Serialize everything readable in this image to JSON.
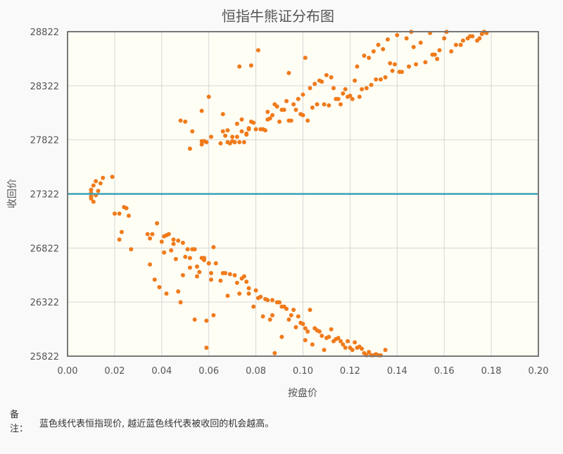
{
  "chart_data": {
    "type": "scatter",
    "title": "恒指牛熊证分布图",
    "xlabel": "按盘价",
    "ylabel": "收回价",
    "xlim": [
      0,
      0.2
    ],
    "ylim": [
      25822,
      28822
    ],
    "x_ticks": [
      "0.00",
      "0.02",
      "0.04",
      "0.06",
      "0.08",
      "0.10",
      "0.12",
      "0.14",
      "0.16",
      "0.18",
      "0.20"
    ],
    "y_ticks": [
      "25822",
      "26322",
      "26822",
      "27322",
      "27822",
      "28322",
      "28822"
    ],
    "grid": true,
    "reference_line": {
      "y": 27322,
      "color": "#3aa1b8"
    },
    "series_color": "#f07a1a",
    "series": [
      {
        "points": [
          [
            0.01,
            27300
          ],
          [
            0.01,
            27330
          ],
          [
            0.01,
            27360
          ],
          [
            0.01,
            27280
          ],
          [
            0.011,
            27250
          ],
          [
            0.011,
            27400
          ],
          [
            0.012,
            27310
          ],
          [
            0.012,
            27440
          ],
          [
            0.013,
            27350
          ],
          [
            0.014,
            27420
          ],
          [
            0.015,
            27470
          ],
          [
            0.019,
            27480
          ],
          [
            0.02,
            27140
          ],
          [
            0.022,
            27140
          ],
          [
            0.022,
            26900
          ],
          [
            0.023,
            26970
          ],
          [
            0.024,
            27200
          ],
          [
            0.025,
            27190
          ],
          [
            0.026,
            27120
          ],
          [
            0.027,
            26810
          ],
          [
            0.034,
            26950
          ],
          [
            0.035,
            26910
          ],
          [
            0.035,
            26670
          ],
          [
            0.036,
            26950
          ],
          [
            0.037,
            26530
          ],
          [
            0.038,
            27050
          ],
          [
            0.039,
            26460
          ],
          [
            0.04,
            26880
          ],
          [
            0.041,
            26780
          ],
          [
            0.041,
            26930
          ],
          [
            0.042,
            26940
          ],
          [
            0.042,
            26400
          ],
          [
            0.043,
            26950
          ],
          [
            0.044,
            26800
          ],
          [
            0.045,
            26900
          ],
          [
            0.045,
            26860
          ],
          [
            0.046,
            26720
          ],
          [
            0.047,
            26890
          ],
          [
            0.047,
            26420
          ],
          [
            0.048,
            26320
          ],
          [
            0.049,
            26870
          ],
          [
            0.049,
            26570
          ],
          [
            0.05,
            26740
          ],
          [
            0.051,
            26810
          ],
          [
            0.052,
            26640
          ],
          [
            0.052,
            26730
          ],
          [
            0.053,
            26810
          ],
          [
            0.054,
            26810
          ],
          [
            0.055,
            26650
          ],
          [
            0.055,
            26560
          ],
          [
            0.056,
            26600
          ],
          [
            0.057,
            26730
          ],
          [
            0.058,
            26710
          ],
          [
            0.058,
            26730
          ],
          [
            0.059,
            26150
          ],
          [
            0.06,
            26680
          ],
          [
            0.06,
            26680
          ],
          [
            0.061,
            26590
          ],
          [
            0.061,
            26530
          ],
          [
            0.062,
            26830
          ],
          [
            0.062,
            26200
          ],
          [
            0.063,
            26680
          ],
          [
            0.054,
            26160
          ],
          [
            0.059,
            25900
          ],
          [
            0.065,
            26520
          ],
          [
            0.066,
            26590
          ],
          [
            0.067,
            26590
          ],
          [
            0.068,
            26380
          ],
          [
            0.069,
            26580
          ],
          [
            0.071,
            26570
          ],
          [
            0.072,
            26500
          ],
          [
            0.073,
            26400
          ],
          [
            0.074,
            26540
          ],
          [
            0.075,
            26560
          ],
          [
            0.076,
            26510
          ],
          [
            0.077,
            26450
          ],
          [
            0.077,
            26400
          ],
          [
            0.079,
            26280
          ],
          [
            0.08,
            26430
          ],
          [
            0.081,
            26360
          ],
          [
            0.082,
            26370
          ],
          [
            0.083,
            26190
          ],
          [
            0.084,
            26350
          ],
          [
            0.085,
            26340
          ],
          [
            0.086,
            26160
          ],
          [
            0.087,
            26340
          ],
          [
            0.087,
            26200
          ],
          [
            0.088,
            25850
          ],
          [
            0.089,
            26320
          ],
          [
            0.09,
            26320
          ],
          [
            0.091,
            26280
          ],
          [
            0.091,
            26000
          ],
          [
            0.092,
            26280
          ],
          [
            0.093,
            26260
          ],
          [
            0.094,
            26160
          ],
          [
            0.095,
            26200
          ],
          [
            0.096,
            26250
          ],
          [
            0.097,
            26090
          ],
          [
            0.098,
            26190
          ],
          [
            0.099,
            26130
          ],
          [
            0.1,
            26120
          ],
          [
            0.101,
            26080
          ],
          [
            0.101,
            25970
          ],
          [
            0.102,
            26050
          ],
          [
            0.103,
            26250
          ],
          [
            0.104,
            25930
          ],
          [
            0.105,
            26080
          ],
          [
            0.106,
            26060
          ],
          [
            0.107,
            26050
          ],
          [
            0.108,
            26010
          ],
          [
            0.109,
            25880
          ],
          [
            0.11,
            25990
          ],
          [
            0.111,
            26000
          ],
          [
            0.112,
            26070
          ],
          [
            0.113,
            25960
          ],
          [
            0.114,
            25980
          ],
          [
            0.115,
            25990
          ],
          [
            0.116,
            25960
          ],
          [
            0.117,
            25930
          ],
          [
            0.118,
            25900
          ],
          [
            0.119,
            25960
          ],
          [
            0.12,
            25900
          ],
          [
            0.121,
            25880
          ],
          [
            0.122,
            25950
          ],
          [
            0.123,
            25900
          ],
          [
            0.124,
            25910
          ],
          [
            0.125,
            25890
          ],
          [
            0.126,
            25850
          ],
          [
            0.127,
            25830
          ],
          [
            0.128,
            25860
          ],
          [
            0.129,
            25830
          ],
          [
            0.13,
            25830
          ],
          [
            0.131,
            25840
          ],
          [
            0.132,
            25830
          ],
          [
            0.133,
            25830
          ],
          [
            0.135,
            25880
          ],
          [
            0.048,
            28000
          ],
          [
            0.05,
            27990
          ],
          [
            0.052,
            27740
          ],
          [
            0.053,
            27900
          ],
          [
            0.057,
            27780
          ],
          [
            0.057,
            27810
          ],
          [
            0.057,
            28090
          ],
          [
            0.058,
            27810
          ],
          [
            0.059,
            27800
          ],
          [
            0.06,
            28220
          ],
          [
            0.061,
            27850
          ],
          [
            0.065,
            27790
          ],
          [
            0.066,
            27900
          ],
          [
            0.066,
            28060
          ],
          [
            0.067,
            27860
          ],
          [
            0.068,
            27910
          ],
          [
            0.068,
            27800
          ],
          [
            0.069,
            27790
          ],
          [
            0.07,
            27850
          ],
          [
            0.07,
            27810
          ],
          [
            0.071,
            27800
          ],
          [
            0.072,
            27970
          ],
          [
            0.072,
            27850
          ],
          [
            0.073,
            27800
          ],
          [
            0.073,
            28500
          ],
          [
            0.074,
            28010
          ],
          [
            0.074,
            27900
          ],
          [
            0.075,
            27800
          ],
          [
            0.076,
            27880
          ],
          [
            0.076,
            27870
          ],
          [
            0.077,
            27920
          ],
          [
            0.077,
            27930
          ],
          [
            0.078,
            27990
          ],
          [
            0.078,
            28510
          ],
          [
            0.079,
            27980
          ],
          [
            0.08,
            27920
          ],
          [
            0.081,
            28650
          ],
          [
            0.082,
            27920
          ],
          [
            0.083,
            27920
          ],
          [
            0.084,
            27910
          ],
          [
            0.085,
            28080
          ],
          [
            0.085,
            28010
          ],
          [
            0.086,
            28020
          ],
          [
            0.087,
            28050
          ],
          [
            0.088,
            28150
          ],
          [
            0.089,
            28130
          ],
          [
            0.09,
            27990
          ],
          [
            0.091,
            28100
          ],
          [
            0.092,
            28100
          ],
          [
            0.093,
            28180
          ],
          [
            0.094,
            28440
          ],
          [
            0.094,
            28000
          ],
          [
            0.095,
            28000
          ],
          [
            0.096,
            28150
          ],
          [
            0.097,
            28100
          ],
          [
            0.098,
            28200
          ],
          [
            0.099,
            28060
          ],
          [
            0.1,
            28050
          ],
          [
            0.1,
            28240
          ],
          [
            0.101,
            28580
          ],
          [
            0.102,
            28000
          ],
          [
            0.103,
            28300
          ],
          [
            0.104,
            28120
          ],
          [
            0.105,
            28340
          ],
          [
            0.106,
            28150
          ],
          [
            0.107,
            28370
          ],
          [
            0.108,
            28360
          ],
          [
            0.109,
            28150
          ],
          [
            0.11,
            28420
          ],
          [
            0.111,
            28140
          ],
          [
            0.112,
            28400
          ],
          [
            0.113,
            28300
          ],
          [
            0.114,
            28200
          ],
          [
            0.115,
            28200
          ],
          [
            0.116,
            28150
          ],
          [
            0.117,
            28250
          ],
          [
            0.118,
            28290
          ],
          [
            0.119,
            28220
          ],
          [
            0.12,
            28230
          ],
          [
            0.121,
            28200
          ],
          [
            0.122,
            28370
          ],
          [
            0.123,
            28500
          ],
          [
            0.124,
            28220
          ],
          [
            0.125,
            28290
          ],
          [
            0.126,
            28600
          ],
          [
            0.127,
            28300
          ],
          [
            0.128,
            28580
          ],
          [
            0.129,
            28330
          ],
          [
            0.13,
            28640
          ],
          [
            0.131,
            28380
          ],
          [
            0.132,
            28700
          ],
          [
            0.133,
            28380
          ],
          [
            0.134,
            28660
          ],
          [
            0.135,
            28400
          ],
          [
            0.136,
            28750
          ],
          [
            0.137,
            28530
          ],
          [
            0.138,
            28460
          ],
          [
            0.139,
            28520
          ],
          [
            0.14,
            28790
          ],
          [
            0.141,
            28450
          ],
          [
            0.142,
            28450
          ],
          [
            0.144,
            28760
          ],
          [
            0.145,
            28500
          ],
          [
            0.146,
            28820
          ],
          [
            0.147,
            28680
          ],
          [
            0.148,
            28520
          ],
          [
            0.15,
            28720
          ],
          [
            0.152,
            28540
          ],
          [
            0.154,
            28810
          ],
          [
            0.155,
            28610
          ],
          [
            0.156,
            28610
          ],
          [
            0.157,
            28570
          ],
          [
            0.158,
            28650
          ],
          [
            0.16,
            28760
          ],
          [
            0.161,
            28820
          ],
          [
            0.163,
            28640
          ],
          [
            0.165,
            28700
          ],
          [
            0.167,
            28700
          ],
          [
            0.168,
            28740
          ],
          [
            0.17,
            28760
          ],
          [
            0.171,
            28780
          ],
          [
            0.172,
            28780
          ],
          [
            0.174,
            28740
          ],
          [
            0.175,
            28760
          ],
          [
            0.176,
            28800
          ],
          [
            0.177,
            28820
          ],
          [
            0.178,
            28810
          ]
        ]
      }
    ]
  },
  "note": {
    "label": "备注：",
    "text": "蓝色线代表恒指现价, 越近蓝色线代表被收回的机会越高。"
  }
}
